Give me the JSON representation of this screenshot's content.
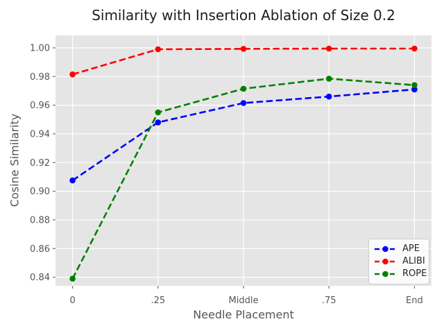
{
  "chart_data": {
    "type": "line",
    "title": "Similarity with Insertion Ablation of Size 0.2",
    "xlabel": "Needle Placement",
    "ylabel": "Cosine Similarity",
    "categories": [
      "0",
      ".25",
      "Middle",
      ".75",
      "End"
    ],
    "series": [
      {
        "name": "APE",
        "color": "#0000ff",
        "linestyle": "dashed",
        "marker": "circle",
        "values": [
          0.9075,
          0.948,
          0.9615,
          0.966,
          0.971
        ]
      },
      {
        "name": "ALIBI",
        "color": "#ff0000",
        "linestyle": "dashed",
        "marker": "circle",
        "values": [
          0.9815,
          0.999,
          0.9993,
          0.9995,
          0.9995
        ]
      },
      {
        "name": "ROPE",
        "color": "#008000",
        "linestyle": "dashed",
        "marker": "circle",
        "values": [
          0.839,
          0.955,
          0.9715,
          0.9785,
          0.974
        ]
      }
    ],
    "yticks": [
      0.84,
      0.86,
      0.88,
      0.9,
      0.92,
      0.94,
      0.96,
      0.98,
      1.0
    ],
    "ylim": [
      0.834,
      1.0087
    ],
    "xlim": [
      -0.2,
      4.2
    ],
    "grid": true,
    "legend": {
      "position": "lower right",
      "labels": [
        "APE",
        "ALIBI",
        "ROPE"
      ]
    },
    "style": {
      "figure_bg": "#ffffff",
      "plot_bg": "#e5e5e5",
      "grid_color": "#ffffff",
      "tick_color": "#555555",
      "label_color": "#555555",
      "title_color": "#1c1c1c",
      "legend_text_color": "#262626",
      "legend_bg": "rgba(255,255,255,0.85)",
      "legend_border": "#cccccc"
    }
  }
}
